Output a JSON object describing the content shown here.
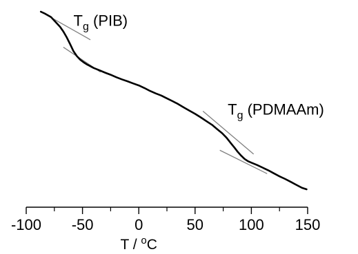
{
  "chart_data": {
    "type": "line",
    "xlabel_base": "T / ",
    "xlabel_sup": "o",
    "xlabel_unit": "C",
    "ylabel": "",
    "xlim": [
      -100,
      150
    ],
    "ylim": [
      0,
      1
    ],
    "x_ticks": [
      -100,
      -50,
      0,
      50,
      100,
      150
    ],
    "x_tick_labels": [
      "-100",
      "-50",
      "0",
      "50",
      "100",
      "150"
    ],
    "y_axis_shown": false,
    "grid": false,
    "series": [
      {
        "x": [
          -87,
          -83,
          -78,
          -74,
          -70,
          -67,
          -64,
          -61,
          -58,
          -55,
          -52,
          -49,
          -46,
          -43,
          -40,
          -35,
          -30,
          -25,
          -20,
          -15,
          -10,
          -5,
          0,
          5,
          10,
          15,
          20,
          25,
          30,
          35,
          40,
          45,
          50,
          55,
          60,
          65,
          70,
          74,
          78,
          82,
          85,
          88,
          91,
          94,
          97,
          100,
          105,
          110,
          115,
          120,
          125,
          130,
          135,
          140,
          145,
          149
        ],
        "y": [
          1.0,
          0.988,
          0.97,
          0.943,
          0.915,
          0.888,
          0.855,
          0.818,
          0.778,
          0.75,
          0.73,
          0.715,
          0.703,
          0.693,
          0.683,
          0.67,
          0.657,
          0.645,
          0.631,
          0.619,
          0.608,
          0.596,
          0.585,
          0.57,
          0.554,
          0.54,
          0.528,
          0.512,
          0.496,
          0.48,
          0.461,
          0.443,
          0.425,
          0.405,
          0.384,
          0.363,
          0.337,
          0.316,
          0.29,
          0.258,
          0.235,
          0.21,
          0.189,
          0.171,
          0.158,
          0.15,
          0.137,
          0.122,
          0.107,
          0.09,
          0.073,
          0.058,
          0.042,
          0.025,
          0.008,
          0.0
        ]
      }
    ],
    "tangents": [
      {
        "x": [
          -83,
          -43
        ],
        "y": [
          0.985,
          0.842
        ]
      },
      {
        "x": [
          -67,
          -34
        ],
        "y": [
          0.8,
          0.66
        ]
      },
      {
        "x": [
          57,
          102
        ],
        "y": [
          0.44,
          0.198
        ]
      },
      {
        "x": [
          72,
          114
        ],
        "y": [
          0.22,
          0.088
        ]
      }
    ],
    "annotations": [
      {
        "main": "T",
        "sub": "g",
        "rest": " (PIB)",
        "x": -58,
        "y": 0.92
      },
      {
        "main": "T",
        "sub": "g",
        "rest": " (PDMAAm)",
        "x": 79,
        "y": 0.42
      }
    ],
    "colors": {
      "curve": "#000000",
      "tangent": "#808080",
      "axis": "#000000"
    }
  }
}
